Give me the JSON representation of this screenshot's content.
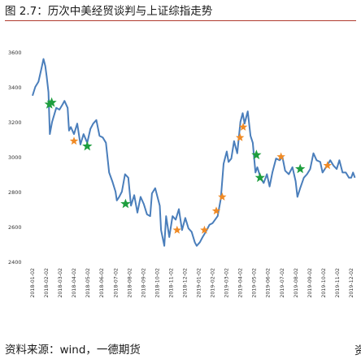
{
  "header": {
    "title": "图 2.7：历次中美经贸谈判与上证综指走势"
  },
  "footer": {
    "source": "资料来源：wind，一德期货",
    "edge_glyph": "资"
  },
  "chart_data": {
    "type": "line",
    "title": "",
    "xlabel": "",
    "ylabel": "",
    "ylim": [
      2400,
      3600
    ],
    "yticks": [
      2400,
      2600,
      2800,
      3000,
      3200,
      3400,
      3600
    ],
    "xlim": [
      "2018-01-02",
      "2019-12-02"
    ],
    "x_tick_labels": [
      "2018-01-02",
      "2018-02-02",
      "2018-03-02",
      "2018-04-02",
      "2018-05-02",
      "2018-06-02",
      "2018-07-02",
      "2018-08-02",
      "2018-09-02",
      "2018-10-02",
      "2018-11-02",
      "2018-12-02",
      "2019-01-02",
      "2019-02-02",
      "2019-03-02",
      "2019-04-02",
      "2019-05-02",
      "2019-06-02",
      "2019-07-02",
      "2019-08-02",
      "2019-09-02",
      "2019-10-02",
      "2019-11-02",
      "2019-12-02"
    ],
    "grid": false,
    "colors": {
      "line": "#4a7ebb",
      "star_green": "#1e9e3e",
      "star_orange": "#f08a24"
    },
    "series": [
      {
        "points": [
          [
            "2018-01-02",
            3350
          ],
          [
            "2018-01-08",
            3400
          ],
          [
            "2018-01-15",
            3430
          ],
          [
            "2018-01-22",
            3510
          ],
          [
            "2018-01-26",
            3560
          ],
          [
            "2018-01-30",
            3520
          ],
          [
            "2018-02-02",
            3460
          ],
          [
            "2018-02-06",
            3370
          ],
          [
            "2018-02-09",
            3130
          ],
          [
            "2018-02-14",
            3200
          ],
          [
            "2018-02-23",
            3280
          ],
          [
            "2018-03-02",
            3270
          ],
          [
            "2018-03-09",
            3300
          ],
          [
            "2018-03-13",
            3320
          ],
          [
            "2018-03-20",
            3280
          ],
          [
            "2018-03-23",
            3150
          ],
          [
            "2018-03-27",
            3170
          ],
          [
            "2018-04-03",
            3130
          ],
          [
            "2018-04-10",
            3190
          ],
          [
            "2018-04-17",
            3070
          ],
          [
            "2018-04-24",
            3130
          ],
          [
            "2018-05-02",
            3080
          ],
          [
            "2018-05-09",
            3160
          ],
          [
            "2018-05-15",
            3190
          ],
          [
            "2018-05-22",
            3210
          ],
          [
            "2018-05-29",
            3120
          ],
          [
            "2018-06-05",
            3110
          ],
          [
            "2018-06-12",
            3080
          ],
          [
            "2018-06-19",
            2910
          ],
          [
            "2018-06-26",
            2860
          ],
          [
            "2018-07-03",
            2800
          ],
          [
            "2018-07-06",
            2750
          ],
          [
            "2018-07-11",
            2770
          ],
          [
            "2018-07-17",
            2800
          ],
          [
            "2018-07-24",
            2900
          ],
          [
            "2018-07-31",
            2880
          ],
          [
            "2018-08-06",
            2720
          ],
          [
            "2018-08-13",
            2780
          ],
          [
            "2018-08-20",
            2680
          ],
          [
            "2018-08-27",
            2770
          ],
          [
            "2018-09-03",
            2730
          ],
          [
            "2018-09-10",
            2670
          ],
          [
            "2018-09-17",
            2660
          ],
          [
            "2018-09-21",
            2790
          ],
          [
            "2018-09-28",
            2820
          ],
          [
            "2018-10-08",
            2720
          ],
          [
            "2018-10-11",
            2580
          ],
          [
            "2018-10-18",
            2490
          ],
          [
            "2018-10-22",
            2660
          ],
          [
            "2018-10-29",
            2540
          ],
          [
            "2018-11-05",
            2660
          ],
          [
            "2018-11-12",
            2640
          ],
          [
            "2018-11-19",
            2700
          ],
          [
            "2018-11-26",
            2580
          ],
          [
            "2018-12-03",
            2650
          ],
          [
            "2018-12-10",
            2590
          ],
          [
            "2018-12-17",
            2570
          ],
          [
            "2018-12-24",
            2510
          ],
          [
            "2018-12-28",
            2490
          ],
          [
            "2019-01-04",
            2510
          ],
          [
            "2019-01-10",
            2540
          ],
          [
            "2019-01-17",
            2570
          ],
          [
            "2019-01-25",
            2610
          ],
          [
            "2019-02-01",
            2620
          ],
          [
            "2019-02-12",
            2660
          ],
          [
            "2019-02-19",
            2760
          ],
          [
            "2019-02-25",
            2960
          ],
          [
            "2019-03-04",
            3030
          ],
          [
            "2019-03-08",
            2970
          ],
          [
            "2019-03-14",
            2990
          ],
          [
            "2019-03-20",
            3090
          ],
          [
            "2019-03-27",
            3020
          ],
          [
            "2019-04-03",
            3200
          ],
          [
            "2019-04-08",
            3250
          ],
          [
            "2019-04-12",
            3190
          ],
          [
            "2019-04-19",
            3260
          ],
          [
            "2019-04-25",
            3120
          ],
          [
            "2019-04-30",
            3080
          ],
          [
            "2019-05-06",
            2910
          ],
          [
            "2019-05-10",
            2940
          ],
          [
            "2019-05-17",
            2880
          ],
          [
            "2019-05-24",
            2850
          ],
          [
            "2019-05-31",
            2900
          ],
          [
            "2019-06-06",
            2830
          ],
          [
            "2019-06-12",
            2910
          ],
          [
            "2019-06-20",
            2990
          ],
          [
            "2019-06-28",
            2980
          ],
          [
            "2019-07-04",
            3000
          ],
          [
            "2019-07-10",
            2920
          ],
          [
            "2019-07-18",
            2900
          ],
          [
            "2019-07-26",
            2940
          ],
          [
            "2019-08-02",
            2860
          ],
          [
            "2019-08-06",
            2770
          ],
          [
            "2019-08-12",
            2820
          ],
          [
            "2019-08-20",
            2880
          ],
          [
            "2019-08-27",
            2900
          ],
          [
            "2019-09-03",
            2930
          ],
          [
            "2019-09-10",
            3020
          ],
          [
            "2019-09-17",
            2980
          ],
          [
            "2019-09-25",
            2970
          ],
          [
            "2019-09-30",
            2910
          ],
          [
            "2019-10-10",
            2950
          ],
          [
            "2019-10-17",
            2980
          ],
          [
            "2019-10-24",
            2950
          ],
          [
            "2019-10-31",
            2930
          ],
          [
            "2019-11-06",
            2980
          ],
          [
            "2019-11-13",
            2910
          ],
          [
            "2019-11-20",
            2910
          ],
          [
            "2019-11-27",
            2880
          ],
          [
            "2019-12-02",
            2880
          ],
          [
            "2019-12-06",
            2910
          ],
          [
            "2019-12-10",
            2880
          ]
        ]
      }
    ],
    "markers": [
      {
        "x": "2018-02-08",
        "y": 3300,
        "color": "green"
      },
      {
        "x": "2018-02-13",
        "y": 3310,
        "color": "green"
      },
      {
        "x": "2018-04-03",
        "y": 3090,
        "color": "orange"
      },
      {
        "x": "2018-05-02",
        "y": 3060,
        "color": "green"
      },
      {
        "x": "2018-07-25",
        "y": 2730,
        "color": "green"
      },
      {
        "x": "2018-11-15",
        "y": 2580,
        "color": "orange"
      },
      {
        "x": "2019-01-14",
        "y": 2580,
        "color": "orange"
      },
      {
        "x": "2019-02-09",
        "y": 2690,
        "color": "orange"
      },
      {
        "x": "2019-02-22",
        "y": 2770,
        "color": "orange"
      },
      {
        "x": "2019-04-02",
        "y": 3110,
        "color": "orange"
      },
      {
        "x": "2019-04-09",
        "y": 3170,
        "color": "orange"
      },
      {
        "x": "2019-05-08",
        "y": 3010,
        "color": "green"
      },
      {
        "x": "2019-05-16",
        "y": 2880,
        "color": "green"
      },
      {
        "x": "2019-07-01",
        "y": 3000,
        "color": "orange"
      },
      {
        "x": "2019-08-12",
        "y": 2930,
        "color": "green"
      },
      {
        "x": "2019-10-11",
        "y": 2950,
        "color": "orange"
      }
    ]
  }
}
